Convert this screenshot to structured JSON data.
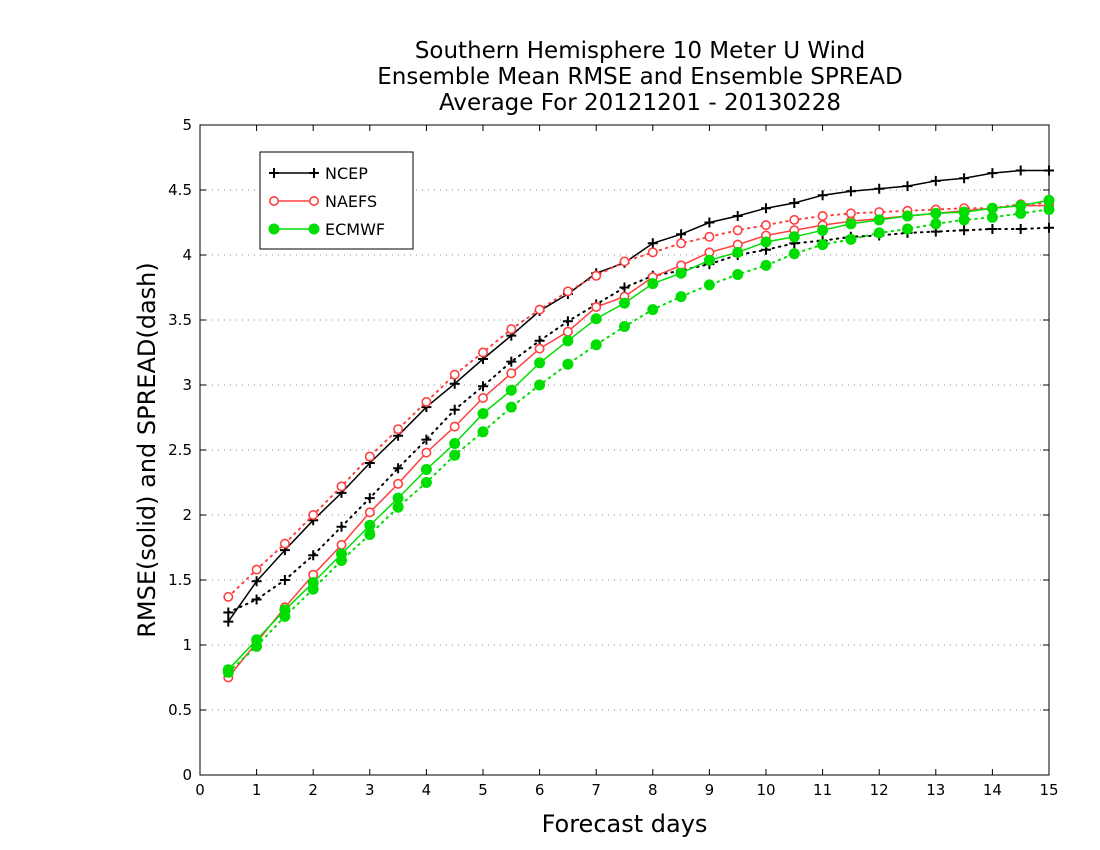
{
  "chart_data": {
    "type": "line",
    "title": [
      "Southern Hemisphere 10 Meter U Wind",
      "Ensemble Mean RMSE and Ensemble SPREAD",
      "Average For 20121201 - 20130228"
    ],
    "xlabel": "Forecast days",
    "ylabel": "RMSE(solid) and SPREAD(dash)",
    "xlim": [
      0,
      15
    ],
    "ylim": [
      0,
      5
    ],
    "xticks": [
      "0",
      "1",
      "2",
      "3",
      "4",
      "5",
      "6",
      "7",
      "8",
      "9",
      "10",
      "11",
      "12",
      "13",
      "14",
      "15"
    ],
    "yticks": [
      "0",
      "0.5",
      "1",
      "1.5",
      "2",
      "2.5",
      "3",
      "3.5",
      "4",
      "4.5",
      "5"
    ],
    "grid": "horizontal dotted",
    "legend_position": "top-left",
    "x": [
      0.5,
      1,
      1.5,
      2,
      2.5,
      3,
      3.5,
      4,
      4.5,
      5,
      5.5,
      6,
      6.5,
      7,
      7.5,
      8,
      8.5,
      9,
      9.5,
      10,
      10.5,
      11,
      11.5,
      12,
      12.5,
      13,
      13.5,
      14,
      14.5,
      15
    ],
    "series": [
      {
        "name": "NCEP",
        "stat": "RMSE",
        "style": "solid",
        "marker": "plus",
        "color": "#000000",
        "values": [
          1.18,
          1.49,
          1.73,
          1.96,
          2.17,
          2.4,
          2.61,
          2.83,
          3.01,
          3.2,
          3.38,
          3.57,
          3.7,
          3.86,
          3.94,
          4.09,
          4.16,
          4.25,
          4.3,
          4.36,
          4.4,
          4.46,
          4.49,
          4.51,
          4.53,
          4.57,
          4.59,
          4.63,
          4.65,
          4.65
        ]
      },
      {
        "name": "NCEP",
        "stat": "SPREAD",
        "style": "dotted",
        "marker": "plus",
        "color": "#000000",
        "values": [
          1.25,
          1.35,
          1.5,
          1.69,
          1.91,
          2.13,
          2.36,
          2.58,
          2.81,
          2.99,
          3.18,
          3.34,
          3.49,
          3.62,
          3.75,
          3.84,
          3.88,
          3.93,
          4.0,
          4.04,
          4.09,
          4.11,
          4.14,
          4.15,
          4.17,
          4.18,
          4.19,
          4.2,
          4.2,
          4.21
        ]
      },
      {
        "name": "NAEFS",
        "stat": "RMSE",
        "style": "solid",
        "marker": "open-circle",
        "color": "#ff4040",
        "values": [
          0.75,
          1.02,
          1.29,
          1.54,
          1.77,
          2.02,
          2.24,
          2.48,
          2.68,
          2.9,
          3.09,
          3.28,
          3.41,
          3.6,
          3.68,
          3.83,
          3.92,
          4.02,
          4.08,
          4.15,
          4.19,
          4.23,
          4.26,
          4.28,
          4.3,
          4.32,
          4.34,
          4.36,
          4.38,
          4.38
        ]
      },
      {
        "name": "NAEFS",
        "stat": "SPREAD",
        "style": "dotted",
        "marker": "open-circle",
        "color": "#ff4040",
        "values": [
          1.37,
          1.58,
          1.78,
          2.0,
          2.22,
          2.45,
          2.66,
          2.87,
          3.08,
          3.25,
          3.43,
          3.58,
          3.72,
          3.84,
          3.95,
          4.02,
          4.09,
          4.14,
          4.19,
          4.23,
          4.27,
          4.3,
          4.32,
          4.33,
          4.34,
          4.35,
          4.36,
          4.36,
          4.39,
          4.4
        ]
      },
      {
        "name": "ECMWF",
        "stat": "RMSE",
        "style": "solid",
        "marker": "filled-circle",
        "color": "#00dd00",
        "values": [
          0.81,
          1.04,
          1.27,
          1.48,
          1.7,
          1.92,
          2.13,
          2.35,
          2.55,
          2.78,
          2.96,
          3.17,
          3.34,
          3.51,
          3.63,
          3.78,
          3.86,
          3.96,
          4.02,
          4.1,
          4.14,
          4.19,
          4.24,
          4.27,
          4.3,
          4.32,
          4.33,
          4.36,
          4.38,
          4.42
        ]
      },
      {
        "name": "ECMWF",
        "stat": "SPREAD",
        "style": "dotted",
        "marker": "filled-circle",
        "color": "#00dd00",
        "values": [
          0.79,
          0.99,
          1.22,
          1.43,
          1.65,
          1.85,
          2.06,
          2.25,
          2.46,
          2.64,
          2.83,
          3.0,
          3.16,
          3.31,
          3.45,
          3.58,
          3.68,
          3.77,
          3.85,
          3.92,
          4.01,
          4.08,
          4.12,
          4.17,
          4.2,
          4.24,
          4.27,
          4.29,
          4.32,
          4.35
        ]
      }
    ],
    "legend": [
      {
        "label": "NCEP",
        "color": "#000000",
        "marker": "plus"
      },
      {
        "label": "NAEFS",
        "color": "#ff4040",
        "marker": "open-circle"
      },
      {
        "label": "ECMWF",
        "color": "#00dd00",
        "marker": "filled-circle"
      }
    ]
  }
}
